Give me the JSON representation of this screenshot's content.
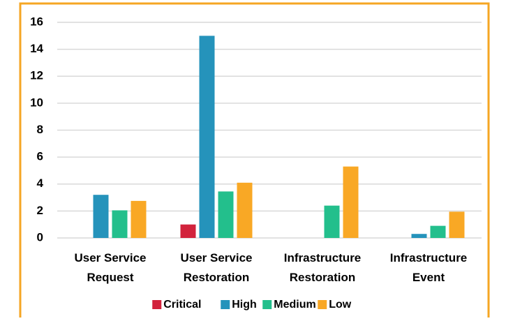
{
  "chart_data": {
    "type": "bar",
    "categories": [
      "User Service Request",
      "User Service Restoration",
      "Infrastructure Restoration",
      "Infrastructure Event"
    ],
    "series": [
      {
        "name": "Critical",
        "color": "#d2233c",
        "values": [
          0,
          1,
          0,
          0
        ]
      },
      {
        "name": "High",
        "color": "#2593bb",
        "values": [
          3.2,
          15,
          0,
          0.3
        ]
      },
      {
        "name": "Medium",
        "color": "#23bf8c",
        "values": [
          2.05,
          3.45,
          2.4,
          0.9
        ]
      },
      {
        "name": "Low",
        "color": "#f9a825",
        "values": [
          2.75,
          4.1,
          5.3,
          1.95
        ]
      }
    ],
    "ylim": [
      0,
      16
    ],
    "yticks": [
      0,
      2,
      4,
      6,
      8,
      10,
      12,
      14,
      16
    ],
    "grid": true,
    "legend": "bottom"
  }
}
